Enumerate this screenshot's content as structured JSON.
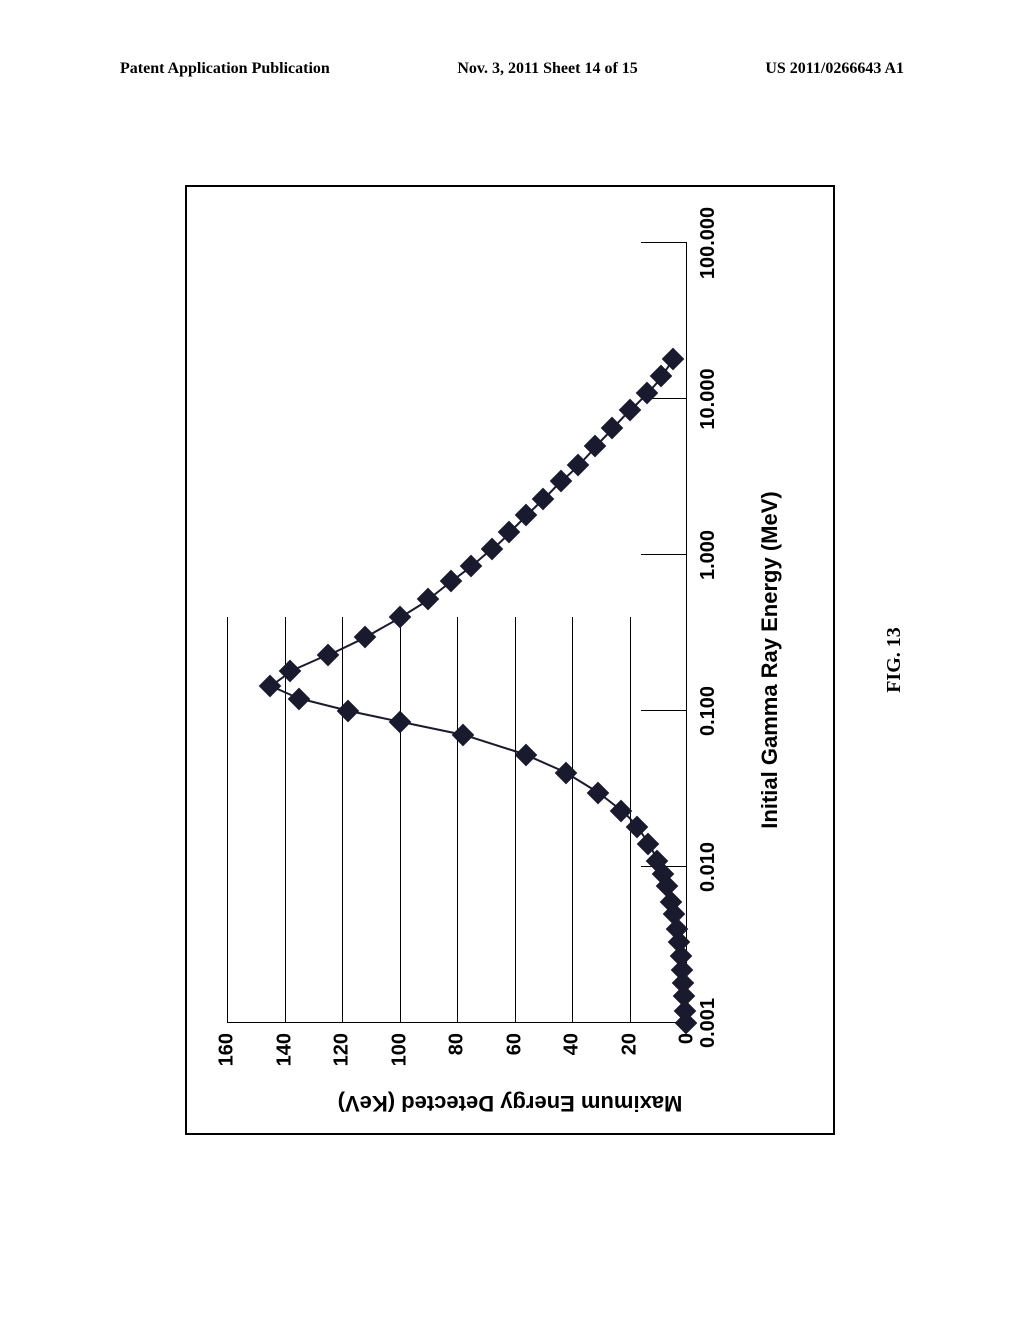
{
  "header": {
    "left": "Patent Application Publication",
    "center": "Nov. 3, 2011  Sheet 14 of 15",
    "right": "US 2011/0266643 A1"
  },
  "figure_caption": "FIG. 13",
  "chart": {
    "type": "scatter-line",
    "xlabel": "Initial Gamma Ray Energy (MeV)",
    "ylabel": "Maximum Energy Detected (KeV)",
    "xscale": "log",
    "xlim": [
      0.001,
      100.0
    ],
    "ylim": [
      0,
      160
    ],
    "xticks": [
      0.001,
      0.01,
      0.1,
      1.0,
      10.0,
      100.0
    ],
    "xtick_labels": [
      "0.001",
      "0.010",
      "0.100",
      "1.000",
      "10.000",
      "100.000"
    ],
    "yticks": [
      0,
      20,
      40,
      60,
      80,
      100,
      120,
      140,
      160
    ],
    "ytick_labels": [
      "0",
      "20",
      "40",
      "60",
      "80",
      "100",
      "120",
      "140",
      "160"
    ],
    "marker_color": "#1a1a2e",
    "line_color": "#1a1a2e",
    "background_color": "#ffffff",
    "border_color": "#000000",
    "marker_style": "diamond",
    "marker_size": 16,
    "label_fontsize": 22,
    "tick_fontsize": 20,
    "data": [
      {
        "x": 0.001,
        "y": 0.5
      },
      {
        "x": 0.0012,
        "y": 0.7
      },
      {
        "x": 0.0015,
        "y": 1.0
      },
      {
        "x": 0.0018,
        "y": 1.3
      },
      {
        "x": 0.0022,
        "y": 1.7
      },
      {
        "x": 0.0027,
        "y": 2.2
      },
      {
        "x": 0.0033,
        "y": 2.8
      },
      {
        "x": 0.004,
        "y": 3.5
      },
      {
        "x": 0.005,
        "y": 4.5
      },
      {
        "x": 0.006,
        "y": 5.5
      },
      {
        "x": 0.0075,
        "y": 7.0
      },
      {
        "x": 0.009,
        "y": 8.5
      },
      {
        "x": 0.011,
        "y": 10.5
      },
      {
        "x": 0.014,
        "y": 13.5
      },
      {
        "x": 0.018,
        "y": 17.5
      },
      {
        "x": 0.023,
        "y": 23
      },
      {
        "x": 0.03,
        "y": 31
      },
      {
        "x": 0.04,
        "y": 42
      },
      {
        "x": 0.052,
        "y": 56
      },
      {
        "x": 0.07,
        "y": 78
      },
      {
        "x": 0.085,
        "y": 100
      },
      {
        "x": 0.1,
        "y": 118
      },
      {
        "x": 0.12,
        "y": 135
      },
      {
        "x": 0.145,
        "y": 145
      },
      {
        "x": 0.18,
        "y": 138
      },
      {
        "x": 0.23,
        "y": 125
      },
      {
        "x": 0.3,
        "y": 112
      },
      {
        "x": 0.4,
        "y": 100
      },
      {
        "x": 0.52,
        "y": 90
      },
      {
        "x": 0.68,
        "y": 82
      },
      {
        "x": 0.85,
        "y": 75
      },
      {
        "x": 1.1,
        "y": 68
      },
      {
        "x": 1.4,
        "y": 62
      },
      {
        "x": 1.8,
        "y": 56
      },
      {
        "x": 2.3,
        "y": 50
      },
      {
        "x": 3.0,
        "y": 44
      },
      {
        "x": 3.8,
        "y": 38
      },
      {
        "x": 5.0,
        "y": 32
      },
      {
        "x": 6.5,
        "y": 26
      },
      {
        "x": 8.5,
        "y": 20
      },
      {
        "x": 11.0,
        "y": 14
      },
      {
        "x": 14.0,
        "y": 9
      },
      {
        "x": 18.0,
        "y": 5
      }
    ]
  }
}
